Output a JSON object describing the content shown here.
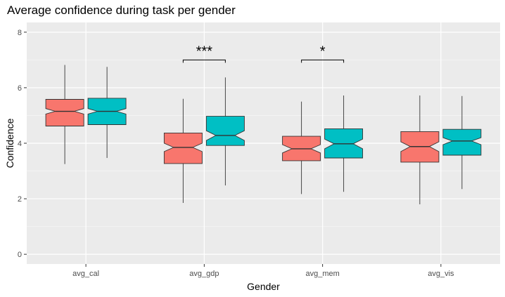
{
  "chart_data": {
    "type": "box",
    "title": "Average confidence during task per gender",
    "xlabel": "Gender",
    "ylabel": "Confidence",
    "ylim": [
      -0.35,
      8.35
    ],
    "yticks": [
      0,
      2,
      4,
      6,
      8
    ],
    "ytick_labels": [
      "0",
      "2",
      "4",
      "6",
      "8"
    ],
    "categories": [
      "avg_cal",
      "avg_gdp",
      "avg_mem",
      "avg_vis"
    ],
    "grid": true,
    "legend": "none",
    "colors": {
      "panel": "#EBEBEB",
      "grid_major": "#FFFFFF",
      "grid_minor": "#F5F5F5",
      "axis_text": "#4D4D4D",
      "box_outline": "#333333"
    },
    "series": [
      {
        "color": "#F8766D",
        "boxes": [
          {
            "min": 3.25,
            "q1": 4.62,
            "median": 5.15,
            "q3": 5.58,
            "max": 6.82,
            "notch": [
              5.05,
              5.25
            ]
          },
          {
            "min": 1.85,
            "q1": 3.27,
            "median": 3.85,
            "q3": 4.37,
            "max": 5.6,
            "notch": [
              3.7,
              4.0
            ]
          },
          {
            "min": 2.17,
            "q1": 3.37,
            "median": 3.8,
            "q3": 4.25,
            "max": 5.5,
            "notch": [
              3.65,
              3.95
            ]
          },
          {
            "min": 1.8,
            "q1": 3.32,
            "median": 3.88,
            "q3": 4.42,
            "max": 5.72,
            "notch": [
              3.7,
              4.05
            ]
          }
        ]
      },
      {
        "color": "#00BFC4",
        "boxes": [
          {
            "min": 3.47,
            "q1": 4.67,
            "median": 5.15,
            "q3": 5.62,
            "max": 6.75,
            "notch": [
              5.05,
              5.25
            ]
          },
          {
            "min": 2.48,
            "q1": 3.92,
            "median": 4.28,
            "q3": 4.97,
            "max": 6.37,
            "notch": [
              4.1,
              4.45
            ]
          },
          {
            "min": 2.25,
            "q1": 3.47,
            "median": 3.98,
            "q3": 4.52,
            "max": 5.72,
            "notch": [
              3.8,
              4.15
            ]
          },
          {
            "min": 2.35,
            "q1": 3.57,
            "median": 4.08,
            "q3": 4.5,
            "max": 5.7,
            "notch": [
              3.95,
              4.2
            ]
          }
        ]
      }
    ],
    "annotations": [
      {
        "text": "***",
        "category": "avg_gdp",
        "y": 7.0
      },
      {
        "text": "*",
        "category": "avg_mem",
        "y": 7.0
      }
    ]
  }
}
